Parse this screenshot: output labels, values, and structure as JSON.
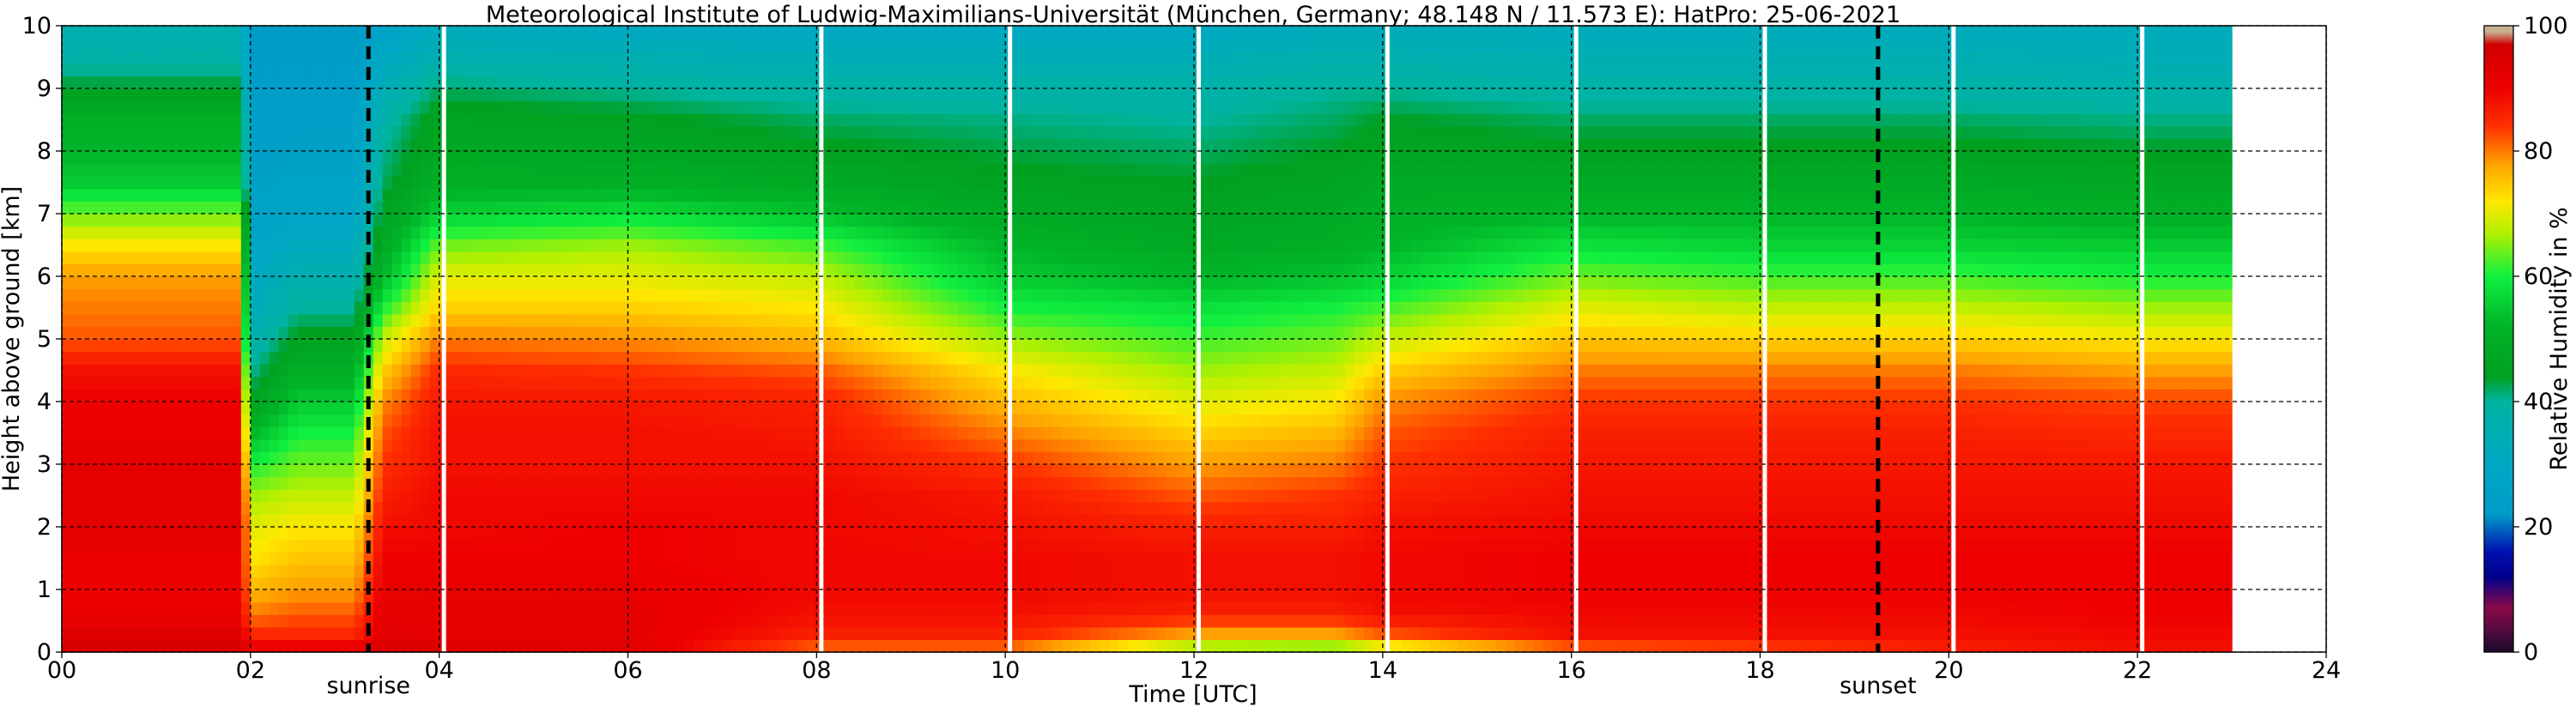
{
  "chart_data": {
    "type": "heatmap",
    "title": "Meteorological Institute of Ludwig-Maximilians-Universität (München, Germany; 48.148 N / 11.573 E):    HatPro: 25-06-2021",
    "xlabel": "Time [UTC]",
    "ylabel": "Height above ground [km]",
    "xlim": [
      0,
      24
    ],
    "ylim": [
      0,
      10
    ],
    "xticks": [
      "00",
      "02",
      "04",
      "06",
      "08",
      "10",
      "12",
      "14",
      "16",
      "18",
      "20",
      "22",
      "24"
    ],
    "yticks": [
      "0",
      "1",
      "2",
      "3",
      "4",
      "5",
      "6",
      "7",
      "8",
      "9",
      "10"
    ],
    "grid": true,
    "data_end_hour": 23,
    "colorbar": {
      "label": "Relative Humidity in %",
      "range": [
        0,
        100
      ],
      "ticks": [
        "0",
        "20",
        "40",
        "60",
        "80",
        "100"
      ]
    },
    "colorscale": [
      {
        "value": 0,
        "color": "#1a0a2a"
      },
      {
        "value": 3,
        "color": "#4a0a3c"
      },
      {
        "value": 7,
        "color": "#8a0a4a"
      },
      {
        "value": 12,
        "color": "#00008a"
      },
      {
        "value": 16,
        "color": "#0010b0"
      },
      {
        "value": 22,
        "color": "#009cc8"
      },
      {
        "value": 30,
        "color": "#00a8c4"
      },
      {
        "value": 40,
        "color": "#00b4a0"
      },
      {
        "value": 44,
        "color": "#00a020"
      },
      {
        "value": 52,
        "color": "#00b428"
      },
      {
        "value": 60,
        "color": "#10f040"
      },
      {
        "value": 67,
        "color": "#b4f000"
      },
      {
        "value": 72,
        "color": "#ffe800"
      },
      {
        "value": 78,
        "color": "#ffa000"
      },
      {
        "value": 84,
        "color": "#ff3000"
      },
      {
        "value": 90,
        "color": "#ee0000"
      },
      {
        "value": 97,
        "color": "#d00000"
      },
      {
        "value": 99,
        "color": "#c8b090"
      },
      {
        "value": 100,
        "color": "#c8b090"
      }
    ],
    "profile_heights_km": [
      0,
      0.3,
      0.6,
      1,
      1.5,
      2,
      2.5,
      3,
      3.5,
      4,
      4.5,
      5,
      5.5,
      6,
      6.5,
      7,
      7.5,
      8,
      8.5,
      9,
      9.5,
      10
    ],
    "profiles": [
      {
        "time": 0,
        "rh": [
          96,
          93,
          91,
          90,
          91,
          92,
          92,
          92,
          91,
          90,
          88,
          82,
          80,
          78,
          72,
          64,
          55,
          52,
          50,
          44,
          38,
          35
        ]
      },
      {
        "time": 1.9,
        "rh": [
          96,
          93,
          91,
          90,
          91,
          92,
          92,
          92,
          91,
          90,
          88,
          82,
          80,
          78,
          72,
          64,
          55,
          52,
          50,
          44,
          38,
          35
        ]
      },
      {
        "time": 2.0,
        "rh": [
          92,
          85,
          80,
          76,
          72,
          70,
          66,
          60,
          52,
          45,
          40,
          36,
          32,
          30,
          28,
          26,
          25,
          24,
          23,
          23,
          22,
          22
        ]
      },
      {
        "time": 2.5,
        "rh": [
          92,
          85,
          82,
          78,
          75,
          72,
          68,
          64,
          60,
          55,
          50,
          45,
          40,
          36,
          32,
          28,
          26,
          25,
          24,
          23,
          22,
          22
        ]
      },
      {
        "time": 3.1,
        "rh": [
          92,
          85,
          82,
          78,
          75,
          72,
          68,
          64,
          60,
          55,
          50,
          45,
          40,
          36,
          32,
          28,
          26,
          25,
          24,
          23,
          22,
          22
        ]
      },
      {
        "time": 3.4,
        "rh": [
          95,
          93,
          92,
          91,
          90,
          88,
          86,
          84,
          82,
          79,
          74,
          68,
          60,
          52,
          48,
          45,
          42,
          40,
          38,
          34,
          30,
          26
        ]
      },
      {
        "time": 4.0,
        "rh": [
          94,
          92,
          92,
          91,
          90,
          89,
          89,
          88,
          88,
          87,
          85,
          80,
          74,
          70,
          64,
          56,
          50,
          48,
          46,
          42,
          36,
          32
        ]
      },
      {
        "time": 6.0,
        "rh": [
          93,
          92,
          92,
          91,
          90,
          90,
          89,
          88,
          88,
          87,
          84,
          79,
          74,
          70,
          66,
          58,
          50,
          47,
          45,
          40,
          35,
          30
        ]
      },
      {
        "time": 8.0,
        "rh": [
          80,
          86,
          88,
          89,
          89,
          89,
          89,
          88,
          87,
          86,
          82,
          76,
          72,
          68,
          62,
          54,
          48,
          45,
          42,
          38,
          34,
          30
        ]
      },
      {
        "time": 10.0,
        "rh": [
          80,
          86,
          88,
          89,
          89,
          88,
          87,
          84,
          80,
          76,
          72,
          66,
          60,
          55,
          52,
          48,
          45,
          43,
          41,
          38,
          34,
          30
        ]
      },
      {
        "time": 12.0,
        "rh": [
          62,
          78,
          86,
          88,
          88,
          86,
          82,
          78,
          74,
          70,
          66,
          62,
          58,
          52,
          48,
          46,
          44,
          42,
          40,
          38,
          34,
          30
        ]
      },
      {
        "time": 13.5,
        "rh": [
          60,
          78,
          86,
          88,
          88,
          86,
          84,
          80,
          76,
          72,
          68,
          64,
          60,
          54,
          50,
          48,
          46,
          44,
          42,
          40,
          36,
          32
        ]
      },
      {
        "time": 14.0,
        "rh": [
          66,
          82,
          88,
          89,
          89,
          88,
          86,
          84,
          82,
          79,
          74,
          68,
          62,
          56,
          52,
          50,
          48,
          46,
          44,
          40,
          36,
          32
        ]
      },
      {
        "time": 16.0,
        "rh": [
          80,
          88,
          89,
          90,
          90,
          89,
          88,
          87,
          86,
          84,
          80,
          75,
          70,
          64,
          58,
          52,
          48,
          45,
          42,
          38,
          35,
          32
        ]
      },
      {
        "time": 18.0,
        "rh": [
          82,
          88,
          89,
          90,
          90,
          89,
          88,
          87,
          86,
          84,
          80,
          74,
          68,
          62,
          56,
          52,
          48,
          45,
          42,
          38,
          35,
          32
        ]
      },
      {
        "time": 20.0,
        "rh": [
          86,
          88,
          89,
          90,
          90,
          89,
          88,
          87,
          86,
          84,
          80,
          74,
          68,
          62,
          56,
          52,
          48,
          45,
          42,
          38,
          35,
          32
        ]
      },
      {
        "time": 22.0,
        "rh": [
          88,
          89,
          90,
          90,
          90,
          89,
          88,
          87,
          85,
          83,
          78,
          72,
          66,
          60,
          55,
          50,
          47,
          44,
          41,
          37,
          34,
          32
        ]
      },
      {
        "time": 23.0,
        "rh": [
          88,
          89,
          90,
          90,
          90,
          89,
          88,
          87,
          85,
          83,
          78,
          72,
          66,
          60,
          55,
          50,
          47,
          44,
          41,
          37,
          34,
          32
        ]
      }
    ],
    "gap_times": [
      4.05,
      8.05,
      10.05,
      12.05,
      14.05,
      16.05,
      18.05,
      20.05,
      22.05
    ],
    "annotations": [
      {
        "text": "sunrise",
        "time": 3.25
      },
      {
        "text": "sunset",
        "time": 19.25
      }
    ]
  }
}
